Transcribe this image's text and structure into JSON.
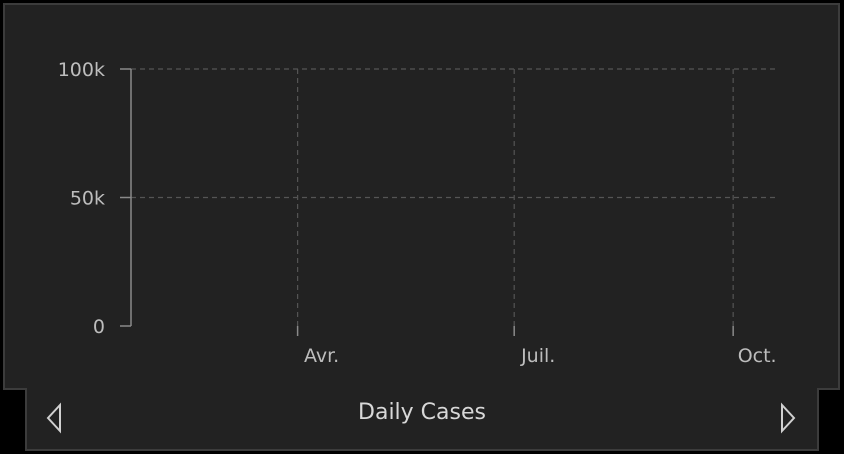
{
  "colors": {
    "background": "#000000",
    "panel": "#222222",
    "panel_border": "#3c3c3c",
    "bar": "#ffa500",
    "axis": "#8a8a8a",
    "grid": "#555555",
    "label": "#bdbdbd"
  },
  "footer": {
    "title": "Daily Cases",
    "prev_icon": "chevron-left-outline-icon",
    "next_icon": "chevron-right-outline-icon"
  },
  "chart_data": {
    "type": "bar",
    "title": "",
    "xlabel": "",
    "ylabel": "",
    "ylim": [
      0,
      100000
    ],
    "yticks": [
      {
        "value": 0,
        "label": "0"
      },
      {
        "value": 50000,
        "label": "50k"
      },
      {
        "value": 100000,
        "label": "100k"
      }
    ],
    "xticks": [
      {
        "value": "2020-04-01",
        "label": "Avr."
      },
      {
        "value": "2020-07-01",
        "label": "Juil."
      },
      {
        "value": "2020-10-01",
        "label": "Oct."
      }
    ],
    "grid": true,
    "start_date": "2020-01-22",
    "end_date": "2020-10-18",
    "series": [
      {
        "values": [
          0,
          0,
          0,
          0,
          0,
          0,
          0,
          0,
          0,
          0,
          0,
          0,
          0,
          0,
          0,
          0,
          0,
          0,
          0,
          0,
          0,
          0,
          0,
          0,
          0,
          0,
          0,
          0,
          0,
          0,
          0,
          0,
          0,
          0,
          0,
          0,
          0,
          0,
          0,
          0,
          0,
          0,
          0,
          0,
          0,
          0,
          0,
          0,
          0,
          0,
          0,
          0,
          0,
          0,
          0,
          0,
          0,
          0,
          0,
          0,
          0,
          0,
          0,
          0,
          0,
          0,
          0,
          0,
          0,
          0,
          0,
          0,
          0,
          0,
          0,
          0,
          0,
          0,
          0,
          0,
          0,
          0,
          0,
          0,
          0,
          0,
          0,
          0,
          0,
          0,
          0,
          0,
          0,
          0,
          0,
          0,
          0,
          0,
          0,
          0,
          0,
          0,
          0,
          0,
          0,
          0,
          0,
          0,
          0,
          0,
          0,
          0,
          0,
          0,
          0,
          0,
          0,
          0,
          0,
          0,
          0,
          0,
          0,
          0,
          0,
          0,
          0,
          0,
          0,
          0,
          0,
          0,
          0,
          0,
          0,
          0,
          0,
          0,
          0,
          0,
          0,
          0,
          0,
          0,
          0,
          0,
          0,
          0,
          0,
          0,
          0,
          0,
          0,
          0,
          0,
          0,
          0,
          0,
          0,
          0,
          0,
          0,
          0,
          0,
          0,
          0,
          0,
          0,
          0,
          0,
          0,
          0,
          0,
          0,
          0,
          0,
          0,
          0,
          0,
          0,
          0,
          0,
          0,
          0,
          0,
          0,
          0,
          0,
          0,
          0,
          0,
          0,
          0,
          0,
          0,
          0,
          0,
          0,
          0,
          0,
          0,
          0,
          0,
          0,
          0,
          0,
          0,
          0,
          0,
          0,
          0,
          0,
          0,
          0,
          0,
          0,
          0,
          0,
          0,
          0,
          0,
          0,
          0,
          0,
          0,
          0,
          0,
          0,
          0,
          0,
          0,
          0,
          0,
          0,
          0,
          0,
          0,
          0,
          0,
          0,
          0,
          0,
          0,
          0,
          0,
          0,
          0,
          0,
          0,
          0,
          0,
          0,
          0,
          0,
          0,
          0,
          0,
          0,
          0,
          0,
          0,
          0,
          0,
          0,
          0,
          0,
          0,
          0,
          0,
          0,
          0,
          0,
          0,
          0,
          0,
          0,
          0,
          0,
          0,
          0,
          0,
          0,
          0,
          0,
          0,
          0,
          0,
          0,
          0,
          0,
          0,
          0,
          0,
          0,
          0,
          0,
          0,
          0,
          0,
          0,
          0
        ]
      }
    ]
  }
}
